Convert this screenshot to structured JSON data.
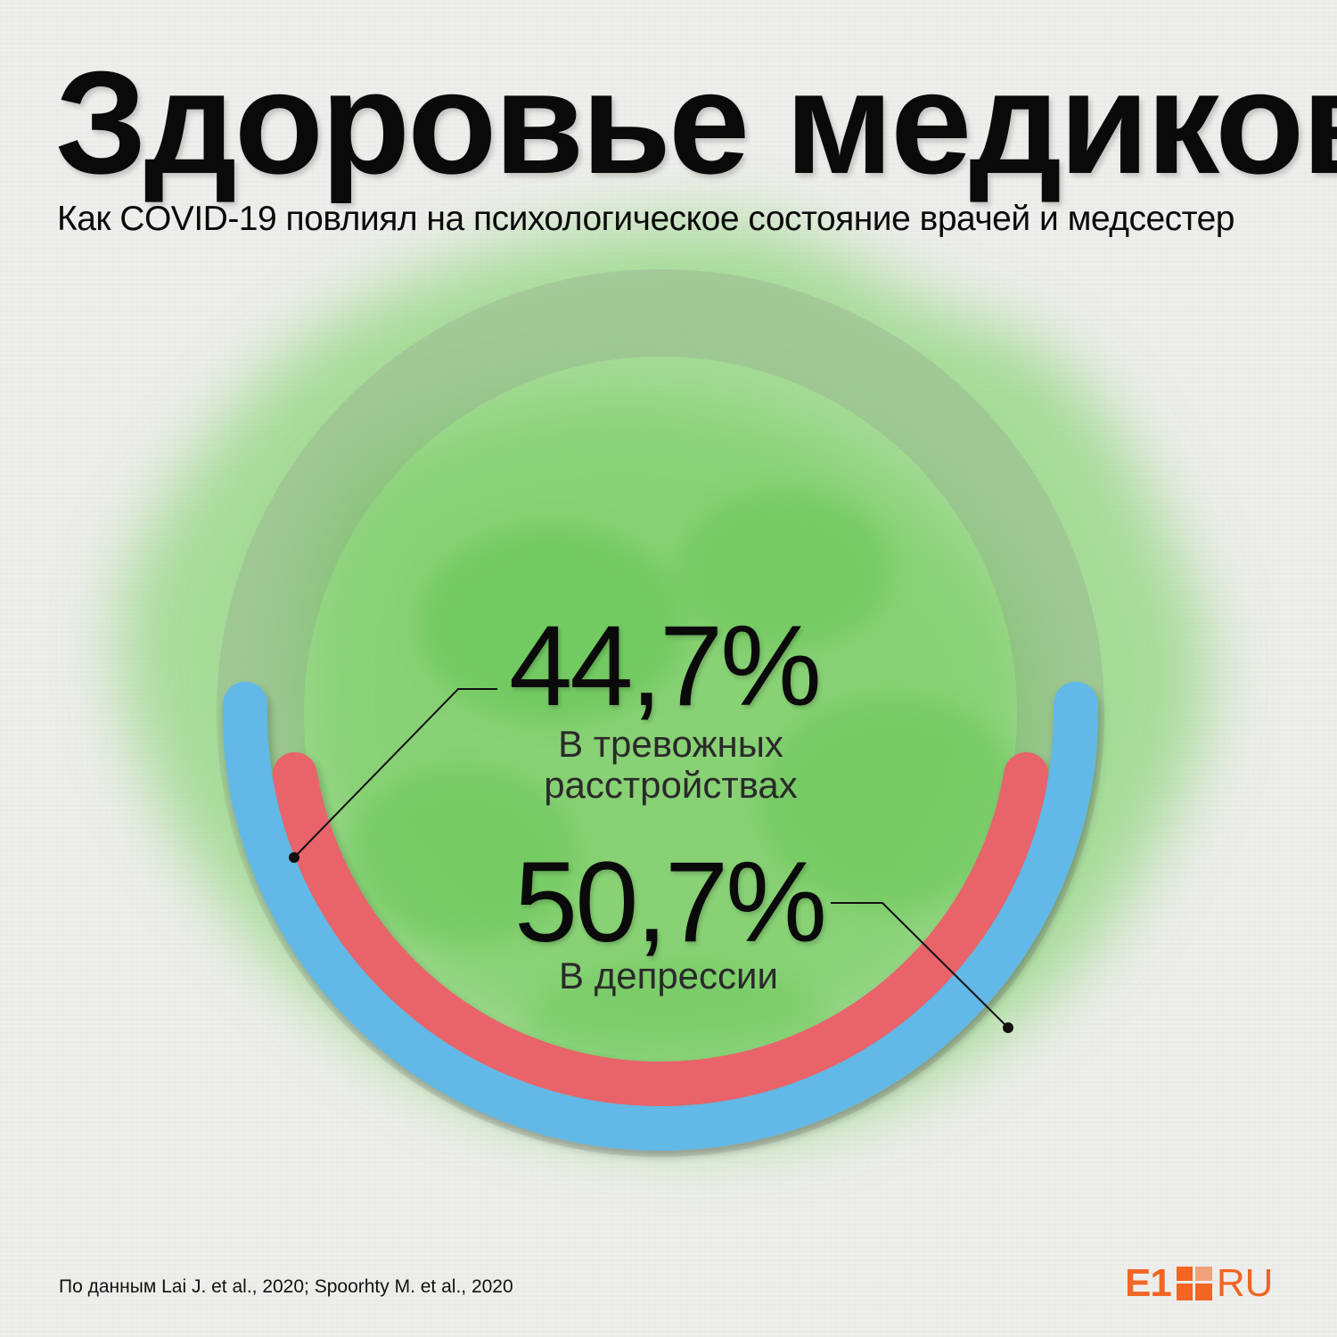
{
  "title": "Здоровье медиков",
  "subtitle": "Как COVID-19 повлиял на психологическое состояние врачей и медсестер",
  "source": "По данным Lai J. et al., 2020; Spoorhty M. et al., 2020",
  "logo": {
    "left": "E1",
    "right": "RU"
  },
  "colors": {
    "anxiety_arc": "#e8646a",
    "depression_arc": "#62b8e6",
    "ring": "#8a8a8a",
    "logo": "#f26522",
    "watercolor": "#5cc24a"
  },
  "chart_data": {
    "type": "pie",
    "unit": "%",
    "series": [
      {
        "value": 44.7,
        "display": "44,7%",
        "label_lines": [
          "В тревожных",
          "расстройствах"
        ],
        "color": "#e8646a"
      },
      {
        "value": 50.7,
        "display": "50,7%",
        "label_lines": [
          "В депрессии"
        ],
        "color": "#62b8e6"
      }
    ]
  }
}
